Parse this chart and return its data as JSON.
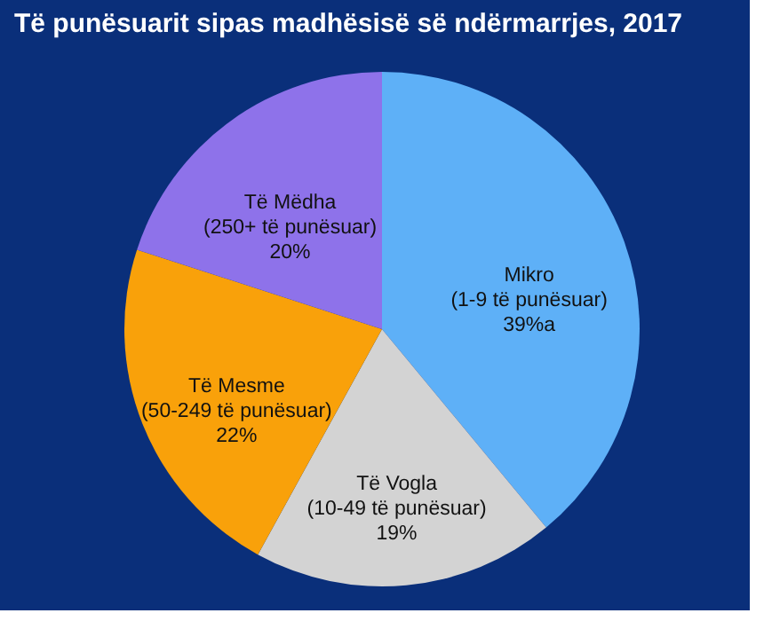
{
  "chart_data": {
    "type": "pie",
    "title": "Të punësuarit sipas madhësisë së ndërmarrjes, 2017",
    "categories": [
      "Mikro (1-9 të punësuar)",
      "Të Vogla (10-49 të punësuar)",
      "Të Mesme (50-249 të punësuar)",
      "Të Mëdha (250+ të punësuar)"
    ],
    "values": [
      39,
      19,
      22,
      20
    ],
    "value_labels": [
      "39%a",
      "19%",
      "22%",
      "20%"
    ],
    "colors": [
      "#5eb0f7",
      "#d3d3d3",
      "#f9a10a",
      "#8e72ea"
    ],
    "legend": false
  }
}
